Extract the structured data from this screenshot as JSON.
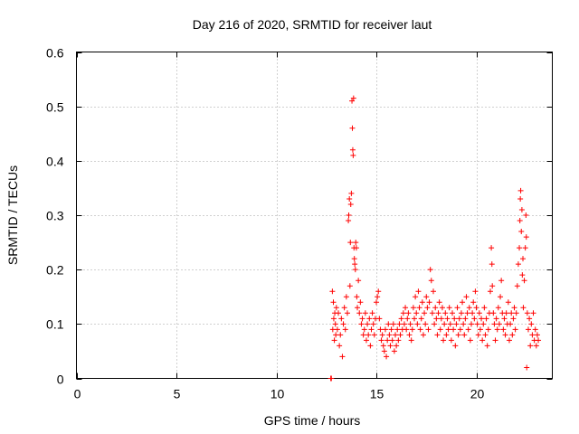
{
  "chart_data": {
    "type": "scatter",
    "title": "Day 216 of 2020, SRMTID for receiver laut",
    "xlabel": "GPS time / hours",
    "ylabel": "SRMTID / TECUs",
    "xlim": [
      0,
      23.8
    ],
    "ylim": [
      0,
      0.6
    ],
    "x_ticks": [
      0,
      5,
      10,
      15,
      20
    ],
    "x_tick_labels": [
      "0",
      "5",
      "10",
      "15",
      "20"
    ],
    "y_ticks": [
      0,
      0.1,
      0.2,
      0.3,
      0.4,
      0.5,
      0.6
    ],
    "y_tick_labels": [
      "0",
      "0.1",
      "0.2",
      "0.3",
      "0.4",
      "0.5",
      "0.6"
    ],
    "grid": true,
    "marker": "+",
    "color": "#ff0000",
    "series": [
      {
        "name": "SRMTID",
        "points": [
          [
            12.72,
            0.0
          ],
          [
            12.75,
            0.0
          ],
          [
            12.8,
            0.16
          ],
          [
            12.82,
            0.09
          ],
          [
            12.85,
            0.14
          ],
          [
            12.87,
            0.11
          ],
          [
            12.9,
            0.07
          ],
          [
            12.92,
            0.12
          ],
          [
            12.95,
            0.1
          ],
          [
            12.97,
            0.08
          ],
          [
            13.0,
            0.13
          ],
          [
            13.05,
            0.09
          ],
          [
            13.1,
            0.12
          ],
          [
            13.15,
            0.06
          ],
          [
            13.2,
            0.08
          ],
          [
            13.25,
            0.11
          ],
          [
            13.3,
            0.04
          ],
          [
            13.35,
            0.1
          ],
          [
            13.4,
            0.13
          ],
          [
            13.45,
            0.09
          ],
          [
            13.5,
            0.15
          ],
          [
            13.55,
            0.12
          ],
          [
            13.6,
            0.29
          ],
          [
            13.62,
            0.3
          ],
          [
            13.65,
            0.33
          ],
          [
            13.68,
            0.17
          ],
          [
            13.7,
            0.25
          ],
          [
            13.72,
            0.32
          ],
          [
            13.75,
            0.34
          ],
          [
            13.78,
            0.51
          ],
          [
            13.8,
            0.46
          ],
          [
            13.82,
            0.42
          ],
          [
            13.84,
            0.41
          ],
          [
            13.86,
            0.515
          ],
          [
            13.88,
            0.24
          ],
          [
            13.9,
            0.22
          ],
          [
            13.92,
            0.21
          ],
          [
            13.95,
            0.2
          ],
          [
            13.97,
            0.25
          ],
          [
            14.0,
            0.24
          ],
          [
            14.02,
            0.15
          ],
          [
            14.05,
            0.13
          ],
          [
            14.1,
            0.18
          ],
          [
            14.15,
            0.12
          ],
          [
            14.2,
            0.14
          ],
          [
            14.25,
            0.1
          ],
          [
            14.3,
            0.11
          ],
          [
            14.35,
            0.08
          ],
          [
            14.4,
            0.09
          ],
          [
            14.45,
            0.12
          ],
          [
            14.5,
            0.07
          ],
          [
            14.55,
            0.1
          ],
          [
            14.6,
            0.08
          ],
          [
            14.65,
            0.11
          ],
          [
            14.7,
            0.06
          ],
          [
            14.75,
            0.09
          ],
          [
            14.8,
            0.12
          ],
          [
            14.85,
            0.1
          ],
          [
            14.9,
            0.08
          ],
          [
            14.95,
            0.11
          ],
          [
            15.0,
            0.14
          ],
          [
            15.05,
            0.15
          ],
          [
            15.1,
            0.16
          ],
          [
            15.15,
            0.11
          ],
          [
            15.2,
            0.09
          ],
          [
            15.25,
            0.07
          ],
          [
            15.3,
            0.08
          ],
          [
            15.35,
            0.06
          ],
          [
            15.4,
            0.05
          ],
          [
            15.45,
            0.09
          ],
          [
            15.5,
            0.04
          ],
          [
            15.55,
            0.07
          ],
          [
            15.6,
            0.1
          ],
          [
            15.65,
            0.08
          ],
          [
            15.7,
            0.06
          ],
          [
            15.75,
            0.09
          ],
          [
            15.8,
            0.07
          ],
          [
            15.85,
            0.1
          ],
          [
            15.9,
            0.05
          ],
          [
            15.95,
            0.08
          ],
          [
            16.0,
            0.06
          ],
          [
            16.05,
            0.09
          ],
          [
            16.1,
            0.07
          ],
          [
            16.15,
            0.1
          ],
          [
            16.2,
            0.08
          ],
          [
            16.25,
            0.11
          ],
          [
            16.3,
            0.09
          ],
          [
            16.35,
            0.12
          ],
          [
            16.4,
            0.1
          ],
          [
            16.45,
            0.13
          ],
          [
            16.5,
            0.09
          ],
          [
            16.55,
            0.11
          ],
          [
            16.6,
            0.12
          ],
          [
            16.65,
            0.08
          ],
          [
            16.7,
            0.1
          ],
          [
            16.75,
            0.07
          ],
          [
            16.8,
            0.09
          ],
          [
            16.85,
            0.13
          ],
          [
            16.9,
            0.11
          ],
          [
            16.95,
            0.15
          ],
          [
            17.0,
            0.12
          ],
          [
            17.05,
            0.1
          ],
          [
            17.1,
            0.16
          ],
          [
            17.15,
            0.13
          ],
          [
            17.2,
            0.09
          ],
          [
            17.25,
            0.11
          ],
          [
            17.3,
            0.14
          ],
          [
            17.35,
            0.08
          ],
          [
            17.4,
            0.12
          ],
          [
            17.45,
            0.1
          ],
          [
            17.5,
            0.15
          ],
          [
            17.55,
            0.13
          ],
          [
            17.6,
            0.09
          ],
          [
            17.65,
            0.14
          ],
          [
            17.7,
            0.2
          ],
          [
            17.75,
            0.18
          ],
          [
            17.8,
            0.12
          ],
          [
            17.85,
            0.16
          ],
          [
            17.9,
            0.1
          ],
          [
            17.95,
            0.13
          ],
          [
            18.0,
            0.11
          ],
          [
            18.05,
            0.08
          ],
          [
            18.1,
            0.12
          ],
          [
            18.15,
            0.14
          ],
          [
            18.2,
            0.09
          ],
          [
            18.25,
            0.11
          ],
          [
            18.3,
            0.13
          ],
          [
            18.35,
            0.07
          ],
          [
            18.4,
            0.1
          ],
          [
            18.45,
            0.12
          ],
          [
            18.5,
            0.08
          ],
          [
            18.55,
            0.11
          ],
          [
            18.6,
            0.09
          ],
          [
            18.65,
            0.13
          ],
          [
            18.7,
            0.1
          ],
          [
            18.75,
            0.07
          ],
          [
            18.8,
            0.12
          ],
          [
            18.85,
            0.09
          ],
          [
            18.9,
            0.11
          ],
          [
            18.95,
            0.06
          ],
          [
            19.0,
            0.1
          ],
          [
            19.05,
            0.13
          ],
          [
            19.1,
            0.08
          ],
          [
            19.15,
            0.11
          ],
          [
            19.2,
            0.09
          ],
          [
            19.25,
            0.12
          ],
          [
            19.3,
            0.14
          ],
          [
            19.35,
            0.1
          ],
          [
            19.4,
            0.08
          ],
          [
            19.45,
            0.11
          ],
          [
            19.5,
            0.15
          ],
          [
            19.55,
            0.12
          ],
          [
            19.6,
            0.09
          ],
          [
            19.65,
            0.13
          ],
          [
            19.7,
            0.07
          ],
          [
            19.75,
            0.1
          ],
          [
            19.8,
            0.12
          ],
          [
            19.85,
            0.14
          ],
          [
            19.9,
            0.11
          ],
          [
            19.95,
            0.16
          ],
          [
            20.0,
            0.13
          ],
          [
            20.05,
            0.1
          ],
          [
            20.1,
            0.08
          ],
          [
            20.15,
            0.12
          ],
          [
            20.2,
            0.09
          ],
          [
            20.25,
            0.11
          ],
          [
            20.3,
            0.07
          ],
          [
            20.35,
            0.1
          ],
          [
            20.4,
            0.13
          ],
          [
            20.45,
            0.08
          ],
          [
            20.5,
            0.11
          ],
          [
            20.55,
            0.06
          ],
          [
            20.6,
            0.09
          ],
          [
            20.65,
            0.12
          ],
          [
            20.7,
            0.16
          ],
          [
            20.75,
            0.24
          ],
          [
            20.78,
            0.21
          ],
          [
            20.8,
            0.17
          ],
          [
            20.85,
            0.12
          ],
          [
            20.9,
            0.1
          ],
          [
            20.95,
            0.07
          ],
          [
            21.0,
            0.11
          ],
          [
            21.05,
            0.09
          ],
          [
            21.1,
            0.13
          ],
          [
            21.15,
            0.1
          ],
          [
            21.2,
            0.15
          ],
          [
            21.25,
            0.18
          ],
          [
            21.3,
            0.12
          ],
          [
            21.35,
            0.09
          ],
          [
            21.4,
            0.11
          ],
          [
            21.45,
            0.08
          ],
          [
            21.5,
            0.12
          ],
          [
            21.55,
            0.1
          ],
          [
            21.6,
            0.14
          ],
          [
            21.65,
            0.07
          ],
          [
            21.7,
            0.1
          ],
          [
            21.75,
            0.12
          ],
          [
            21.8,
            0.08
          ],
          [
            21.85,
            0.11
          ],
          [
            21.9,
            0.13
          ],
          [
            21.95,
            0.09
          ],
          [
            22.0,
            0.12
          ],
          [
            22.05,
            0.17
          ],
          [
            22.1,
            0.21
          ],
          [
            22.15,
            0.24
          ],
          [
            22.18,
            0.29
          ],
          [
            22.2,
            0.33
          ],
          [
            22.22,
            0.345
          ],
          [
            22.25,
            0.27
          ],
          [
            22.28,
            0.31
          ],
          [
            22.3,
            0.19
          ],
          [
            22.33,
            0.22
          ],
          [
            22.35,
            0.13
          ],
          [
            22.4,
            0.18
          ],
          [
            22.45,
            0.24
          ],
          [
            22.48,
            0.3
          ],
          [
            22.5,
            0.26
          ],
          [
            22.52,
            0.02
          ],
          [
            22.55,
            0.12
          ],
          [
            22.6,
            0.09
          ],
          [
            22.65,
            0.11
          ],
          [
            22.7,
            0.06
          ],
          [
            22.75,
            0.1
          ],
          [
            22.8,
            0.08
          ],
          [
            22.85,
            0.12
          ],
          [
            22.9,
            0.07
          ],
          [
            22.95,
            0.09
          ],
          [
            23.0,
            0.06
          ],
          [
            23.05,
            0.08
          ],
          [
            23.1,
            0.07
          ]
        ]
      }
    ]
  }
}
